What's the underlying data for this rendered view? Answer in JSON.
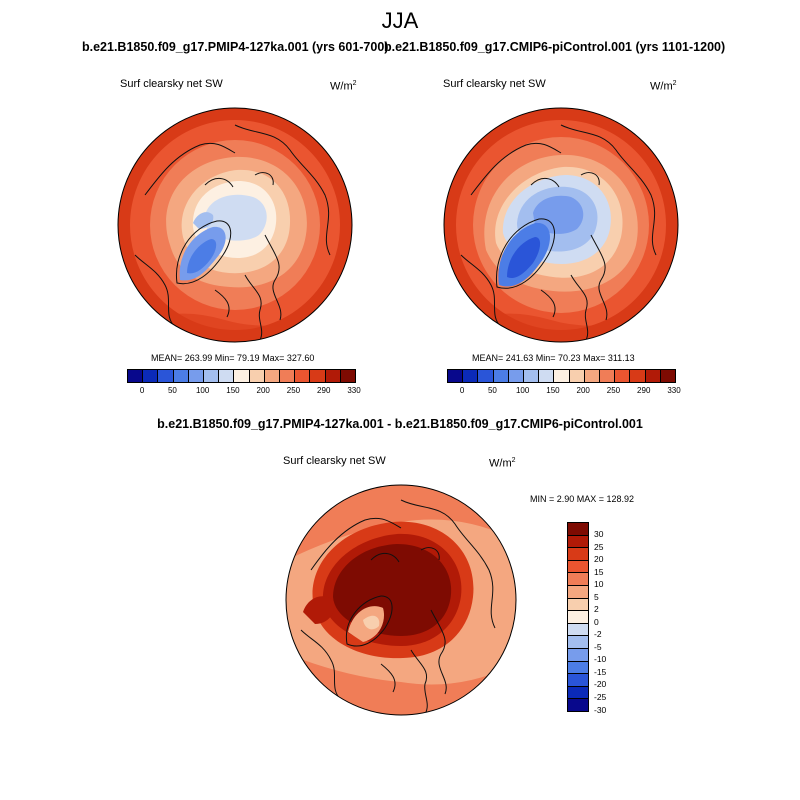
{
  "figure": {
    "season": "JJA",
    "variable": "Surf clearsky net SW",
    "units_base": "W/m",
    "units_exp": "2"
  },
  "panels": [
    {
      "title": "b.e21.B1850.f09_g17.PMIP4-127ka.001 (yrs 601-700)",
      "stats": "MEAN= 263.99  Min=  79.19  Max= 327.60"
    },
    {
      "title": "b.e21.B1850.f09_g17.CMIP6-piControl.001 (yrs 1101-1200)",
      "stats": "MEAN= 241.63  Min=  70.23  Max= 311.13"
    }
  ],
  "difference": {
    "title": "b.e21.B1850.f09_g17.PMIP4-127ka.001 - b.e21.B1850.f09_g17.CMIP6-piControl.001",
    "stats": "MIN =   2.90 MAX = 128.92"
  },
  "colorbar_abs": {
    "labels": [
      "0",
      "50",
      "100",
      "150",
      "200",
      "250",
      "290",
      "330"
    ],
    "colors": [
      "#08088c",
      "#0b2ab8",
      "#2a55d8",
      "#4c7de6",
      "#779cec",
      "#a3beef",
      "#cfdcf2",
      "#fdf0e2",
      "#f8cfae",
      "#f4a780",
      "#f07d57",
      "#ea5530",
      "#d83a17",
      "#b11a07",
      "#7e0b02"
    ]
  },
  "colorbar_diff": {
    "labels": [
      "30",
      "25",
      "20",
      "15",
      "10",
      "5",
      "2",
      "0",
      "-2",
      "-5",
      "-10",
      "-15",
      "-20",
      "-25",
      "-30"
    ],
    "colors": [
      "#7e0b02",
      "#b11a07",
      "#d83a17",
      "#ea5530",
      "#f07d57",
      "#f4a780",
      "#f8cfae",
      "#fdf0e2",
      "#cfdcf2",
      "#a3beef",
      "#779cec",
      "#4c7de6",
      "#2a55d8",
      "#0b2ab8",
      "#08088c"
    ]
  }
}
